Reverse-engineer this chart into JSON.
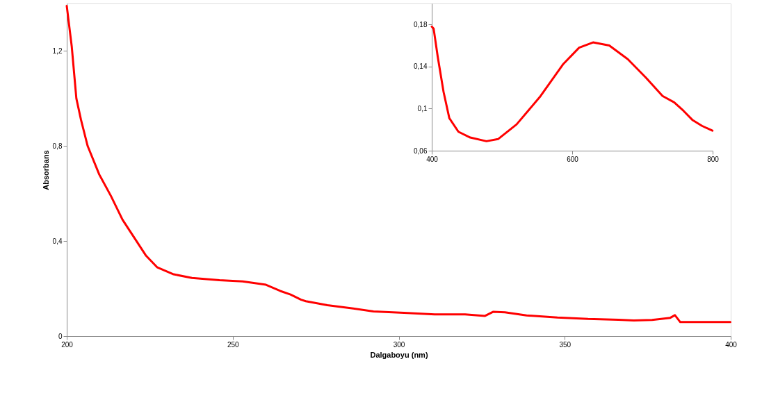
{
  "chart_data": [
    {
      "type": "line",
      "xlabel": "Dalgaboyu (nm)",
      "ylabel": "Absorbans",
      "color": "#ff0000",
      "grid": false,
      "legend": false,
      "x": [
        200,
        201.5,
        202.9,
        204.3,
        206.3,
        209.8,
        213.3,
        216.8,
        221,
        223.8,
        227.2,
        232.2,
        237.7,
        246,
        253,
        260,
        264.3,
        267.4,
        270.6,
        272,
        278.5,
        285.9,
        292.4,
        301.6,
        310.8,
        320,
        326,
        328.4,
        332,
        338.5,
        347.8,
        357,
        366.2,
        370.8,
        376.3,
        381.8,
        383.2,
        384.8,
        399.9
      ],
      "values": [
        1.39,
        1.22,
        1.0,
        0.91,
        0.8,
        0.68,
        0.59,
        0.49,
        0.4,
        0.34,
        0.29,
        0.26,
        0.245,
        0.235,
        0.23,
        0.216,
        0.19,
        0.175,
        0.153,
        0.147,
        0.13,
        0.117,
        0.104,
        0.098,
        0.091,
        0.091,
        0.085,
        0.102,
        0.1,
        0.087,
        0.078,
        0.072,
        0.069,
        0.066,
        0.068,
        0.077,
        0.088,
        0.059,
        0.059
      ],
      "xlim": [
        200,
        400
      ],
      "xticks": [
        200,
        250,
        300,
        350,
        400
      ],
      "ylim": [
        0,
        1.4
      ],
      "yticks": [
        0,
        {
          "value": 0.4,
          "label": "0,4"
        },
        {
          "value": 0.8,
          "label": "0,8"
        },
        {
          "value": 1.2,
          "label": "1,2"
        }
      ]
    },
    {
      "type": "line",
      "color": "#ff0000",
      "grid": false,
      "legend": false,
      "x": [
        400,
        402.7,
        408.6,
        416.8,
        425,
        438,
        454.8,
        477.9,
        494.4,
        520.8,
        553.8,
        586.8,
        609.9,
        629.7,
        652.8,
        679.2,
        705.6,
        728.7,
        745.2,
        758.4,
        771.6,
        784.8,
        799.7
      ],
      "values": [
        0.178,
        0.176,
        0.149,
        0.116,
        0.091,
        0.078,
        0.0725,
        0.069,
        0.071,
        0.085,
        0.111,
        0.142,
        0.158,
        0.163,
        0.16,
        0.147,
        0.129,
        0.112,
        0.106,
        0.098,
        0.089,
        0.0836,
        0.079
      ],
      "xlim": [
        400,
        800
      ],
      "xticks": [
        400,
        600,
        800
      ],
      "ylim": [
        0.06,
        0.2
      ],
      "yticks": [
        {
          "value": 0.06,
          "label": "0,06"
        },
        {
          "value": 0.1,
          "label": "0,1"
        },
        {
          "value": 0.14,
          "label": "0,14"
        },
        {
          "value": 0.18,
          "label": "0,18"
        }
      ]
    }
  ]
}
